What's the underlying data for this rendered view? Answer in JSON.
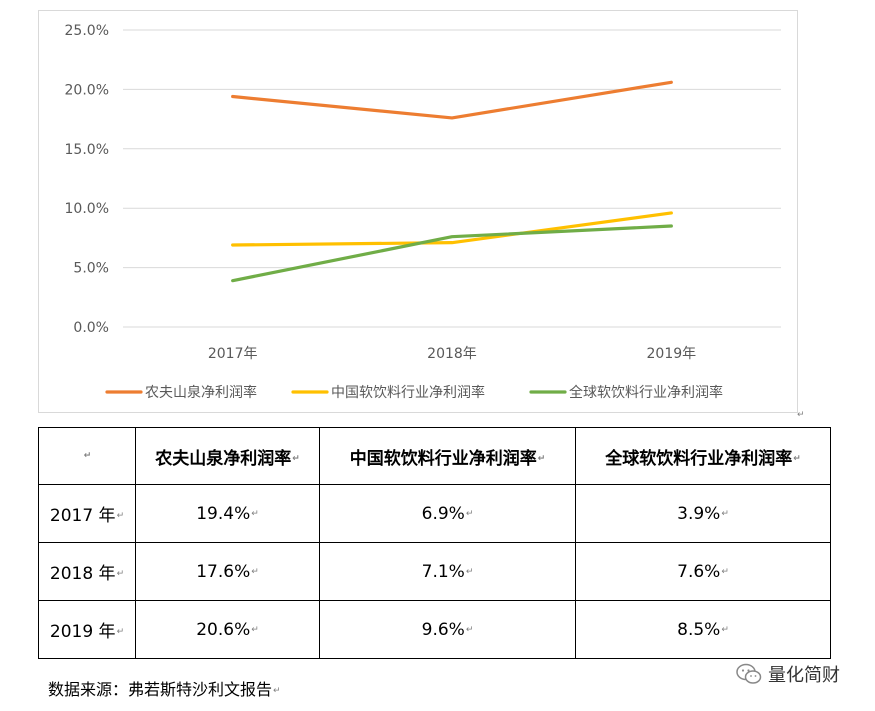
{
  "chart_data": {
    "type": "line",
    "categories": [
      "2017年",
      "2018年",
      "2019年"
    ],
    "series": [
      {
        "name": "农夫山泉净利润率",
        "values": [
          19.4,
          17.6,
          20.6
        ],
        "color": "#ed7d31"
      },
      {
        "name": "中国软饮料行业净利润率",
        "values": [
          6.9,
          7.1,
          9.6
        ],
        "color": "#ffc000"
      },
      {
        "name": "全球软饮料行业净利润率",
        "values": [
          3.9,
          7.6,
          8.5
        ],
        "color": "#70ad47"
      }
    ],
    "yticks": [
      "0.0%",
      "5.0%",
      "10.0%",
      "15.0%",
      "20.0%",
      "25.0%"
    ],
    "ylim": [
      0,
      25
    ],
    "grid": true,
    "legend": "bottom",
    "title": "",
    "xlabel": "",
    "ylabel": ""
  },
  "table": {
    "corner": "",
    "headers": [
      "农夫山泉净利润率",
      "中国软饮料行业净利润率",
      "全球软饮料行业净利润率"
    ],
    "rows": [
      {
        "label": "2017 年",
        "values": [
          "19.4%",
          "6.9%",
          "3.9%"
        ]
      },
      {
        "label": "2018 年",
        "values": [
          "17.6%",
          "7.1%",
          "7.6%"
        ]
      },
      {
        "label": "2019 年",
        "values": [
          "20.6%",
          "9.6%",
          "8.5%"
        ]
      }
    ],
    "paragraph_mark": "↵"
  },
  "source_note": "数据来源：弗若斯特沙利文报告",
  "brand": {
    "name": "量化简财",
    "icon": "wechat-icon"
  }
}
